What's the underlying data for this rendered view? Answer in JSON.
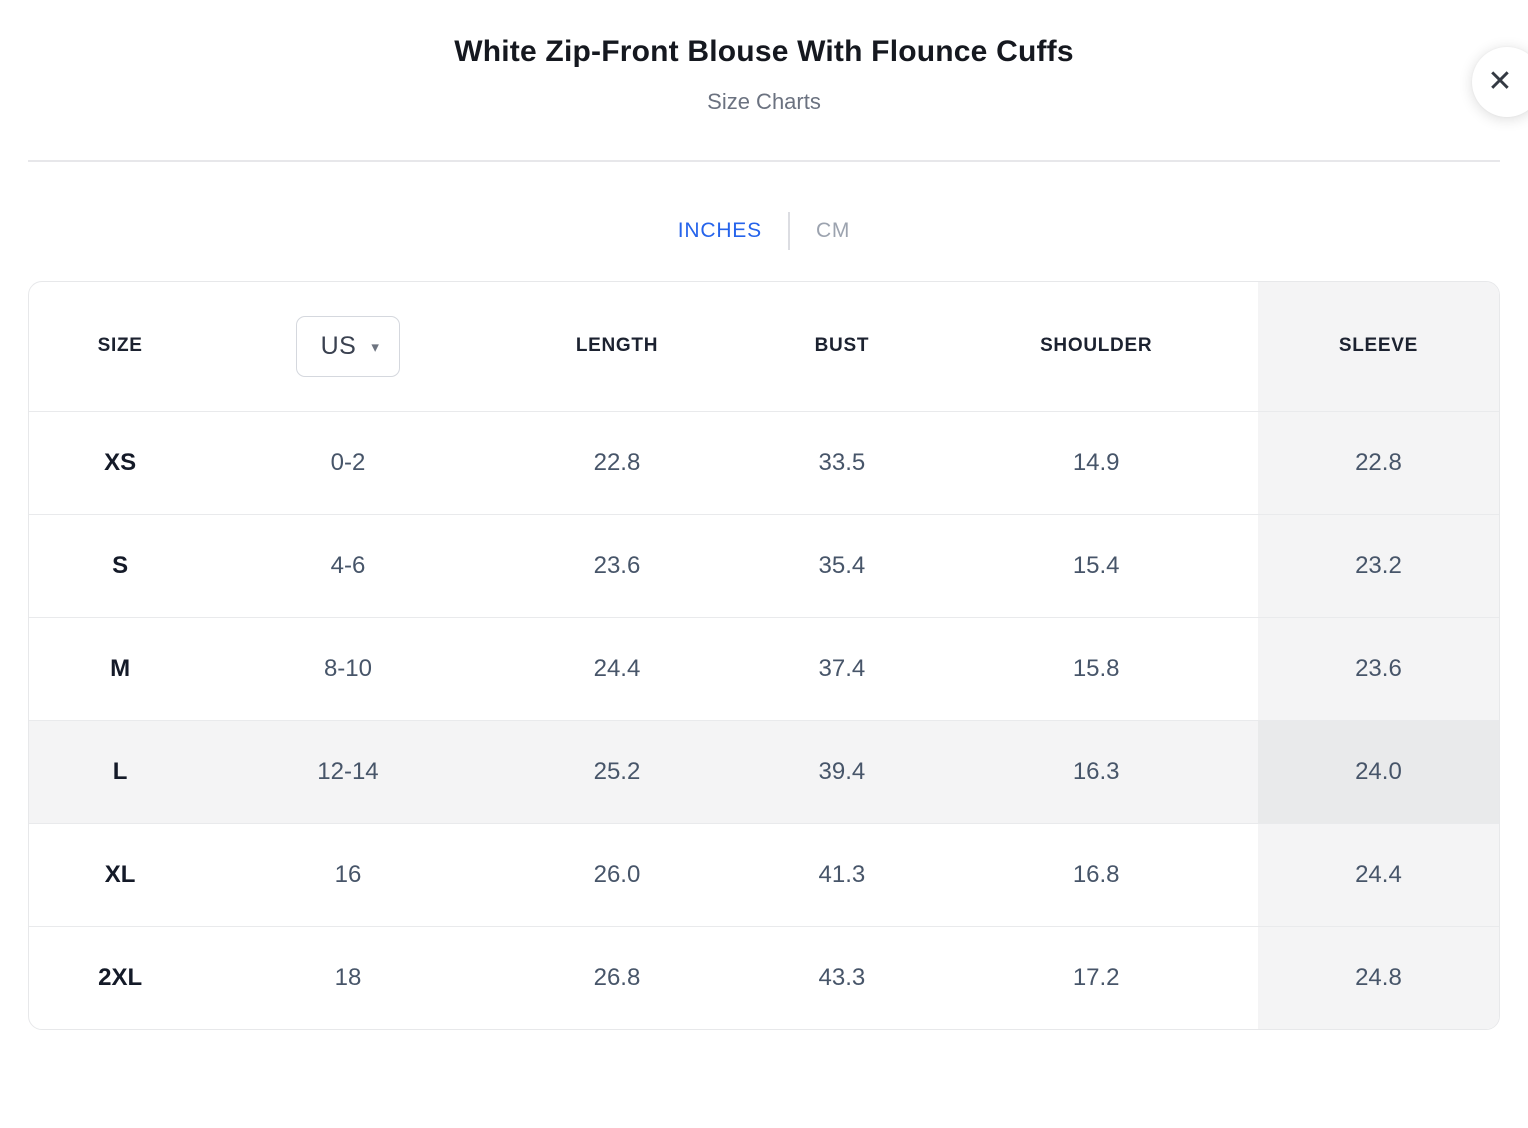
{
  "modal": {
    "title": "White Zip-Front Blouse With Flounce Cuffs",
    "subtitle": "Size Charts"
  },
  "icons": {
    "close": "✕",
    "region_caret": "▾"
  },
  "unit_toggle": {
    "inches_label": "INCHES",
    "cm_label": "CM",
    "selected": "INCHES"
  },
  "size_chart": {
    "region_selector": {
      "value": "US"
    },
    "columns": [
      "SIZE",
      "US",
      "LENGTH",
      "BUST",
      "SHOULDER",
      "SLEEVE"
    ],
    "highlighted_column": "SLEEVE",
    "highlighted_row": "L",
    "rows": [
      {
        "size": "XS",
        "us": "0-2",
        "length": "22.8",
        "bust": "33.5",
        "shoulder": "14.9",
        "sleeve": "22.8"
      },
      {
        "size": "S",
        "us": "4-6",
        "length": "23.6",
        "bust": "35.4",
        "shoulder": "15.4",
        "sleeve": "23.2"
      },
      {
        "size": "M",
        "us": "8-10",
        "length": "24.4",
        "bust": "37.4",
        "shoulder": "15.8",
        "sleeve": "23.6"
      },
      {
        "size": "L",
        "us": "12-14",
        "length": "25.2",
        "bust": "39.4",
        "shoulder": "16.3",
        "sleeve": "24.0"
      },
      {
        "size": "XL",
        "us": "16",
        "length": "26.0",
        "bust": "41.3",
        "shoulder": "16.8",
        "sleeve": "24.4"
      },
      {
        "size": "2XL",
        "us": "18",
        "length": "26.8",
        "bust": "43.3",
        "shoulder": "17.2",
        "sleeve": "24.8"
      }
    ]
  },
  "colors": {
    "accent_blue": "#2563eb",
    "inactive_gray": "#9ca3af",
    "header_text": "#1c2230",
    "cell_text": "#475569",
    "size_text": "#141a28",
    "row_highlight": "#f4f4f5",
    "column_highlight": "#f4f4f5",
    "intersection_highlight": "#e9eaeb",
    "table_border": "#e7e8ea"
  }
}
